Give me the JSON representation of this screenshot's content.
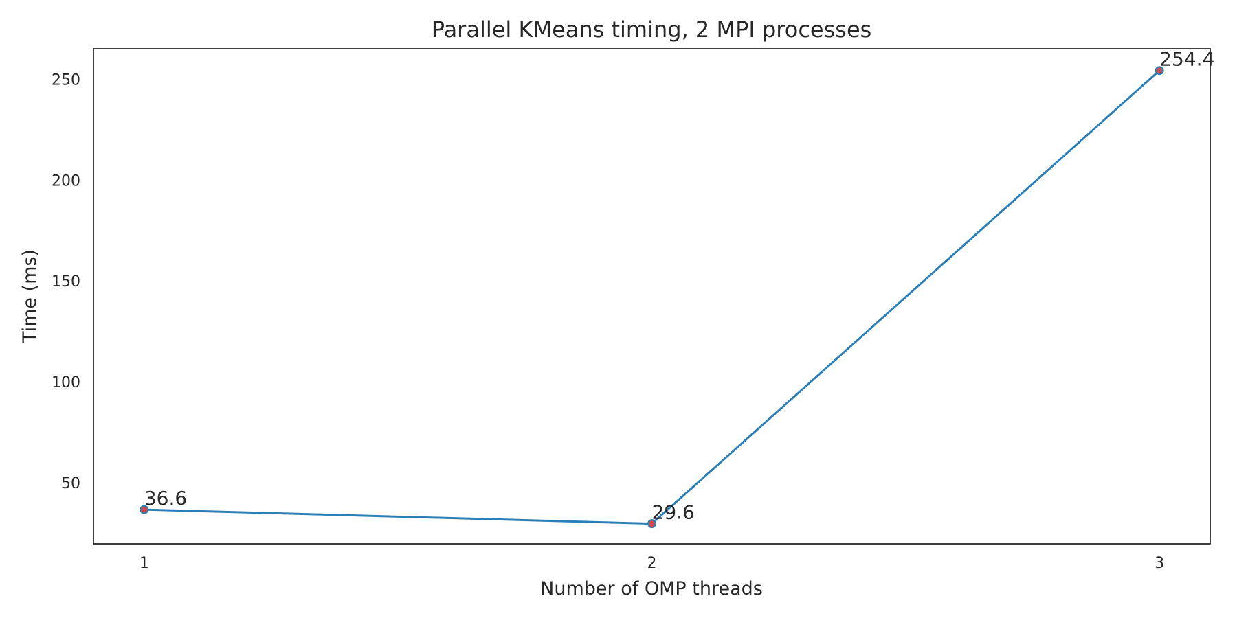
{
  "chart_data": {
    "type": "line",
    "title": "Parallel KMeans timing, 2 MPI processes",
    "xlabel": "Number of OMP threads",
    "ylabel": "Time (ms)",
    "x": [
      1,
      2,
      3
    ],
    "x_tick_labels": [
      "1",
      "2",
      "3"
    ],
    "y_ticks": [
      50,
      100,
      150,
      200,
      250
    ],
    "y_tick_labels": [
      "50",
      "100",
      "150",
      "200",
      "250"
    ],
    "ylim": [
      19.6,
      265.2
    ],
    "xlim": [
      0.9,
      3.1
    ],
    "series": [
      {
        "values": [
          36.6,
          29.6,
          254.4
        ],
        "data_labels": [
          "36.6",
          "29.6",
          "254.4"
        ]
      }
    ],
    "grid": false,
    "colors": {
      "line": "#2a7fb6",
      "marker_fill": "#c44e52",
      "marker_edge": "#2a7fb6",
      "text": "#262626",
      "frame": "#000000"
    }
  }
}
